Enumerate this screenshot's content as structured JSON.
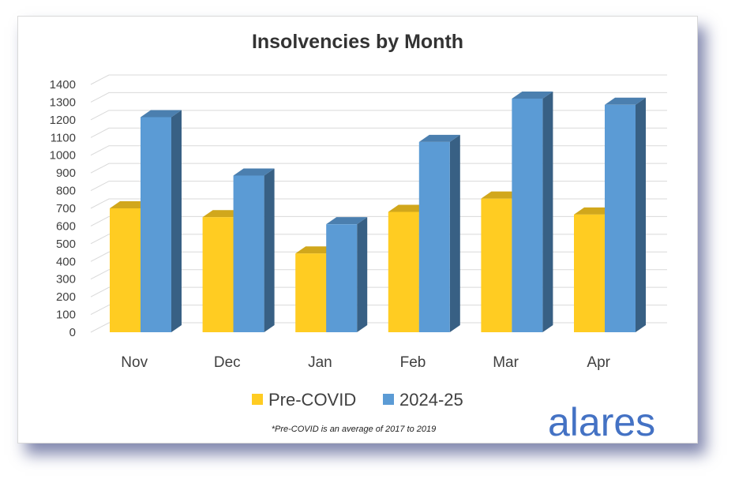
{
  "chart_data": {
    "type": "bar",
    "title": "Insolvencies by Month",
    "categories": [
      "Nov",
      "Dec",
      "Jan",
      "Feb",
      "Mar",
      "Apr"
    ],
    "series": [
      {
        "name": "Pre-COVID",
        "values": [
          700,
          650,
          445,
          680,
          755,
          665
        ],
        "color": "#ffcc22"
      },
      {
        "name": "2024-25",
        "values": [
          1215,
          885,
          610,
          1075,
          1320,
          1285
        ],
        "color": "#5b9bd5"
      }
    ],
    "ylim": [
      0,
      1400
    ],
    "yticks": [
      0,
      100,
      200,
      300,
      400,
      500,
      600,
      700,
      800,
      900,
      1000,
      1100,
      1200,
      1300,
      1400
    ],
    "xlabel": "",
    "ylabel": "",
    "grid": true,
    "legend_position": "bottom"
  },
  "footnote": "*Pre-COVID is an average of 2017 to 2019",
  "brand": "alares"
}
